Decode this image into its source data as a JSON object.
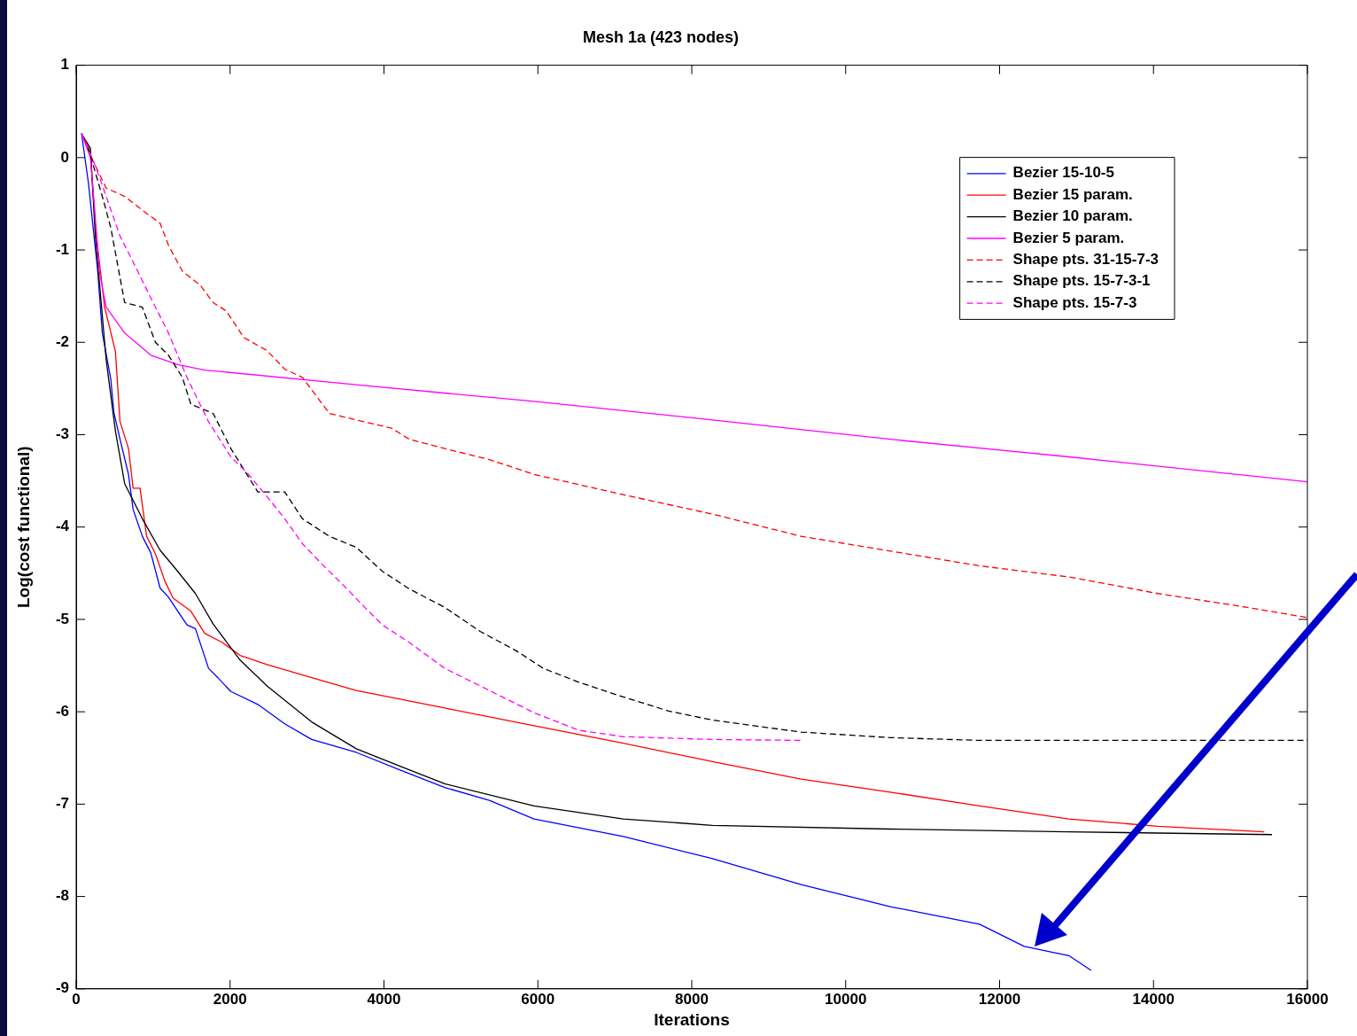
{
  "chart_data": {
    "type": "line",
    "title": "Mesh 1a (423 nodes)",
    "xlabel": "Iterations",
    "ylabel": "Log(cost functional)",
    "xlim": [
      0,
      16000
    ],
    "xticks": [
      0,
      2000,
      4000,
      6000,
      8000,
      10000,
      12000,
      14000,
      16000
    ],
    "ylim": [
      -9,
      1
    ],
    "yticks": [
      -9,
      -8,
      -7,
      -6,
      -5,
      -4,
      -3,
      -2,
      -1,
      0,
      1
    ],
    "grid": false,
    "legend": "top right",
    "marker": "none",
    "series": [
      {
        "name": "Bezier 15-10-5",
        "color": "#0000ff",
        "line_style": "solid",
        "x": [
          70,
          160,
          280,
          340,
          450,
          490,
          570,
          680,
          740,
          860,
          970,
          1090,
          1200,
          1320,
          1440,
          1550,
          1720,
          1840,
          2010,
          2360,
          2710,
          3060,
          3640,
          4210,
          4790,
          5370,
          5950,
          7110,
          8270,
          9420,
          10580,
          11740,
          12320,
          12900,
          13190
        ],
        "values": [
          0.26,
          -0.28,
          -1.23,
          -1.9,
          -2.4,
          -2.76,
          -3.05,
          -3.43,
          -3.81,
          -4.1,
          -4.28,
          -4.66,
          -4.76,
          -4.91,
          -5.06,
          -5.1,
          -5.53,
          -5.63,
          -5.78,
          -5.92,
          -6.13,
          -6.3,
          -6.44,
          -6.63,
          -6.82,
          -6.96,
          -7.16,
          -7.35,
          -7.59,
          -7.87,
          -8.11,
          -8.3,
          -8.54,
          -8.64,
          -8.8
        ]
      },
      {
        "name": "Bezier 15 param.",
        "color": "#ff0000",
        "line_style": "solid",
        "x": [
          70,
          185,
          250,
          370,
          510,
          570,
          680,
          740,
          830,
          915,
          1030,
          1150,
          1260,
          1490,
          1670,
          1900,
          2130,
          2480,
          3060,
          3640,
          4790,
          5950,
          7110,
          8270,
          9420,
          10580,
          11740,
          12900,
          14060,
          15440
        ],
        "values": [
          0.26,
          0.05,
          -0.76,
          -1.62,
          -2.1,
          -2.86,
          -3.15,
          -3.58,
          -3.58,
          -4.1,
          -4.29,
          -4.58,
          -4.77,
          -4.91,
          -5.15,
          -5.25,
          -5.39,
          -5.49,
          -5.63,
          -5.77,
          -5.96,
          -6.15,
          -6.34,
          -6.54,
          -6.73,
          -6.87,
          -7.02,
          -7.16,
          -7.24,
          -7.3
        ]
      },
      {
        "name": "Bezier 10 param.",
        "color": "#000000",
        "line_style": "solid",
        "x": [
          70,
          185,
          250,
          390,
          510,
          630,
          860,
          1090,
          1320,
          1550,
          1780,
          2130,
          2480,
          3060,
          3640,
          4210,
          4790,
          5950,
          7110,
          8270,
          10580,
          12900,
          15540
        ],
        "values": [
          0.26,
          0.1,
          -0.86,
          -2.19,
          -2.96,
          -3.53,
          -3.91,
          -4.25,
          -4.48,
          -4.72,
          -5.05,
          -5.44,
          -5.72,
          -6.11,
          -6.4,
          -6.59,
          -6.78,
          -7.02,
          -7.16,
          -7.23,
          -7.27,
          -7.3,
          -7.33
        ]
      },
      {
        "name": "Bezier 5 param.",
        "color": "#ff00ff",
        "line_style": "solid",
        "x": [
          70,
          185,
          250,
          300,
          390,
          630,
          970,
          1320,
          1670,
          3640,
          5950,
          8270,
          10580,
          12900,
          16000
        ],
        "values": [
          0.26,
          0.0,
          -0.66,
          -1.23,
          -1.62,
          -1.9,
          -2.14,
          -2.24,
          -2.3,
          -2.46,
          -2.64,
          -2.84,
          -3.05,
          -3.24,
          -3.51
        ]
      },
      {
        "name": "Shape pts. 31-15-7-3",
        "color": "#ff0000",
        "line_style": "dashed",
        "x": [
          110,
          220,
          390,
          630,
          860,
          1090,
          1200,
          1380,
          1610,
          1780,
          1950,
          2180,
          2480,
          2710,
          2940,
          3290,
          3640,
          4100,
          4330,
          4790,
          5370,
          5950,
          7110,
          8270,
          9420,
          10580,
          11740,
          12900,
          14060,
          15220,
          16000
        ],
        "values": [
          0.2,
          -0.04,
          -0.33,
          -0.42,
          -0.57,
          -0.71,
          -0.95,
          -1.23,
          -1.38,
          -1.57,
          -1.66,
          -1.95,
          -2.09,
          -2.29,
          -2.38,
          -2.77,
          -2.84,
          -2.93,
          -3.05,
          -3.15,
          -3.27,
          -3.43,
          -3.65,
          -3.86,
          -4.1,
          -4.26,
          -4.42,
          -4.54,
          -4.72,
          -4.87,
          -4.98
        ]
      },
      {
        "name": "Shape pts. 15-7-3-1",
        "color": "#000000",
        "line_style": "dashed",
        "x": [
          150,
          340,
          450,
          630,
          860,
          1030,
          1200,
          1380,
          1490,
          1780,
          2010,
          2360,
          2710,
          2940,
          3290,
          3640,
          3980,
          4330,
          4790,
          5250,
          5720,
          6070,
          6530,
          7110,
          7690,
          8270,
          9420,
          10580,
          11740,
          16000
        ],
        "values": [
          0.12,
          -0.42,
          -0.76,
          -1.57,
          -1.62,
          -2.0,
          -2.14,
          -2.38,
          -2.67,
          -2.77,
          -3.15,
          -3.62,
          -3.62,
          -3.91,
          -4.1,
          -4.22,
          -4.48,
          -4.67,
          -4.87,
          -5.13,
          -5.34,
          -5.53,
          -5.68,
          -5.84,
          -5.99,
          -6.09,
          -6.22,
          -6.28,
          -6.31,
          -6.31
        ]
      },
      {
        "name": "Shape pts. 15-7-3",
        "color": "#ff00ff",
        "line_style": "dashed",
        "x": [
          70,
          250,
          390,
          570,
          800,
          970,
          1200,
          1440,
          1720,
          2010,
          2240,
          2480,
          2710,
          2940,
          3180,
          3520,
          3750,
          3980,
          4330,
          4790,
          5370,
          5950,
          6530,
          7110,
          8270,
          9420
        ],
        "values": [
          0.26,
          -0.09,
          -0.42,
          -0.85,
          -1.23,
          -1.52,
          -1.9,
          -2.38,
          -2.86,
          -3.24,
          -3.43,
          -3.67,
          -3.91,
          -4.18,
          -4.39,
          -4.67,
          -4.87,
          -5.06,
          -5.25,
          -5.53,
          -5.77,
          -6.01,
          -6.2,
          -6.27,
          -6.3,
          -6.31
        ]
      }
    ]
  }
}
